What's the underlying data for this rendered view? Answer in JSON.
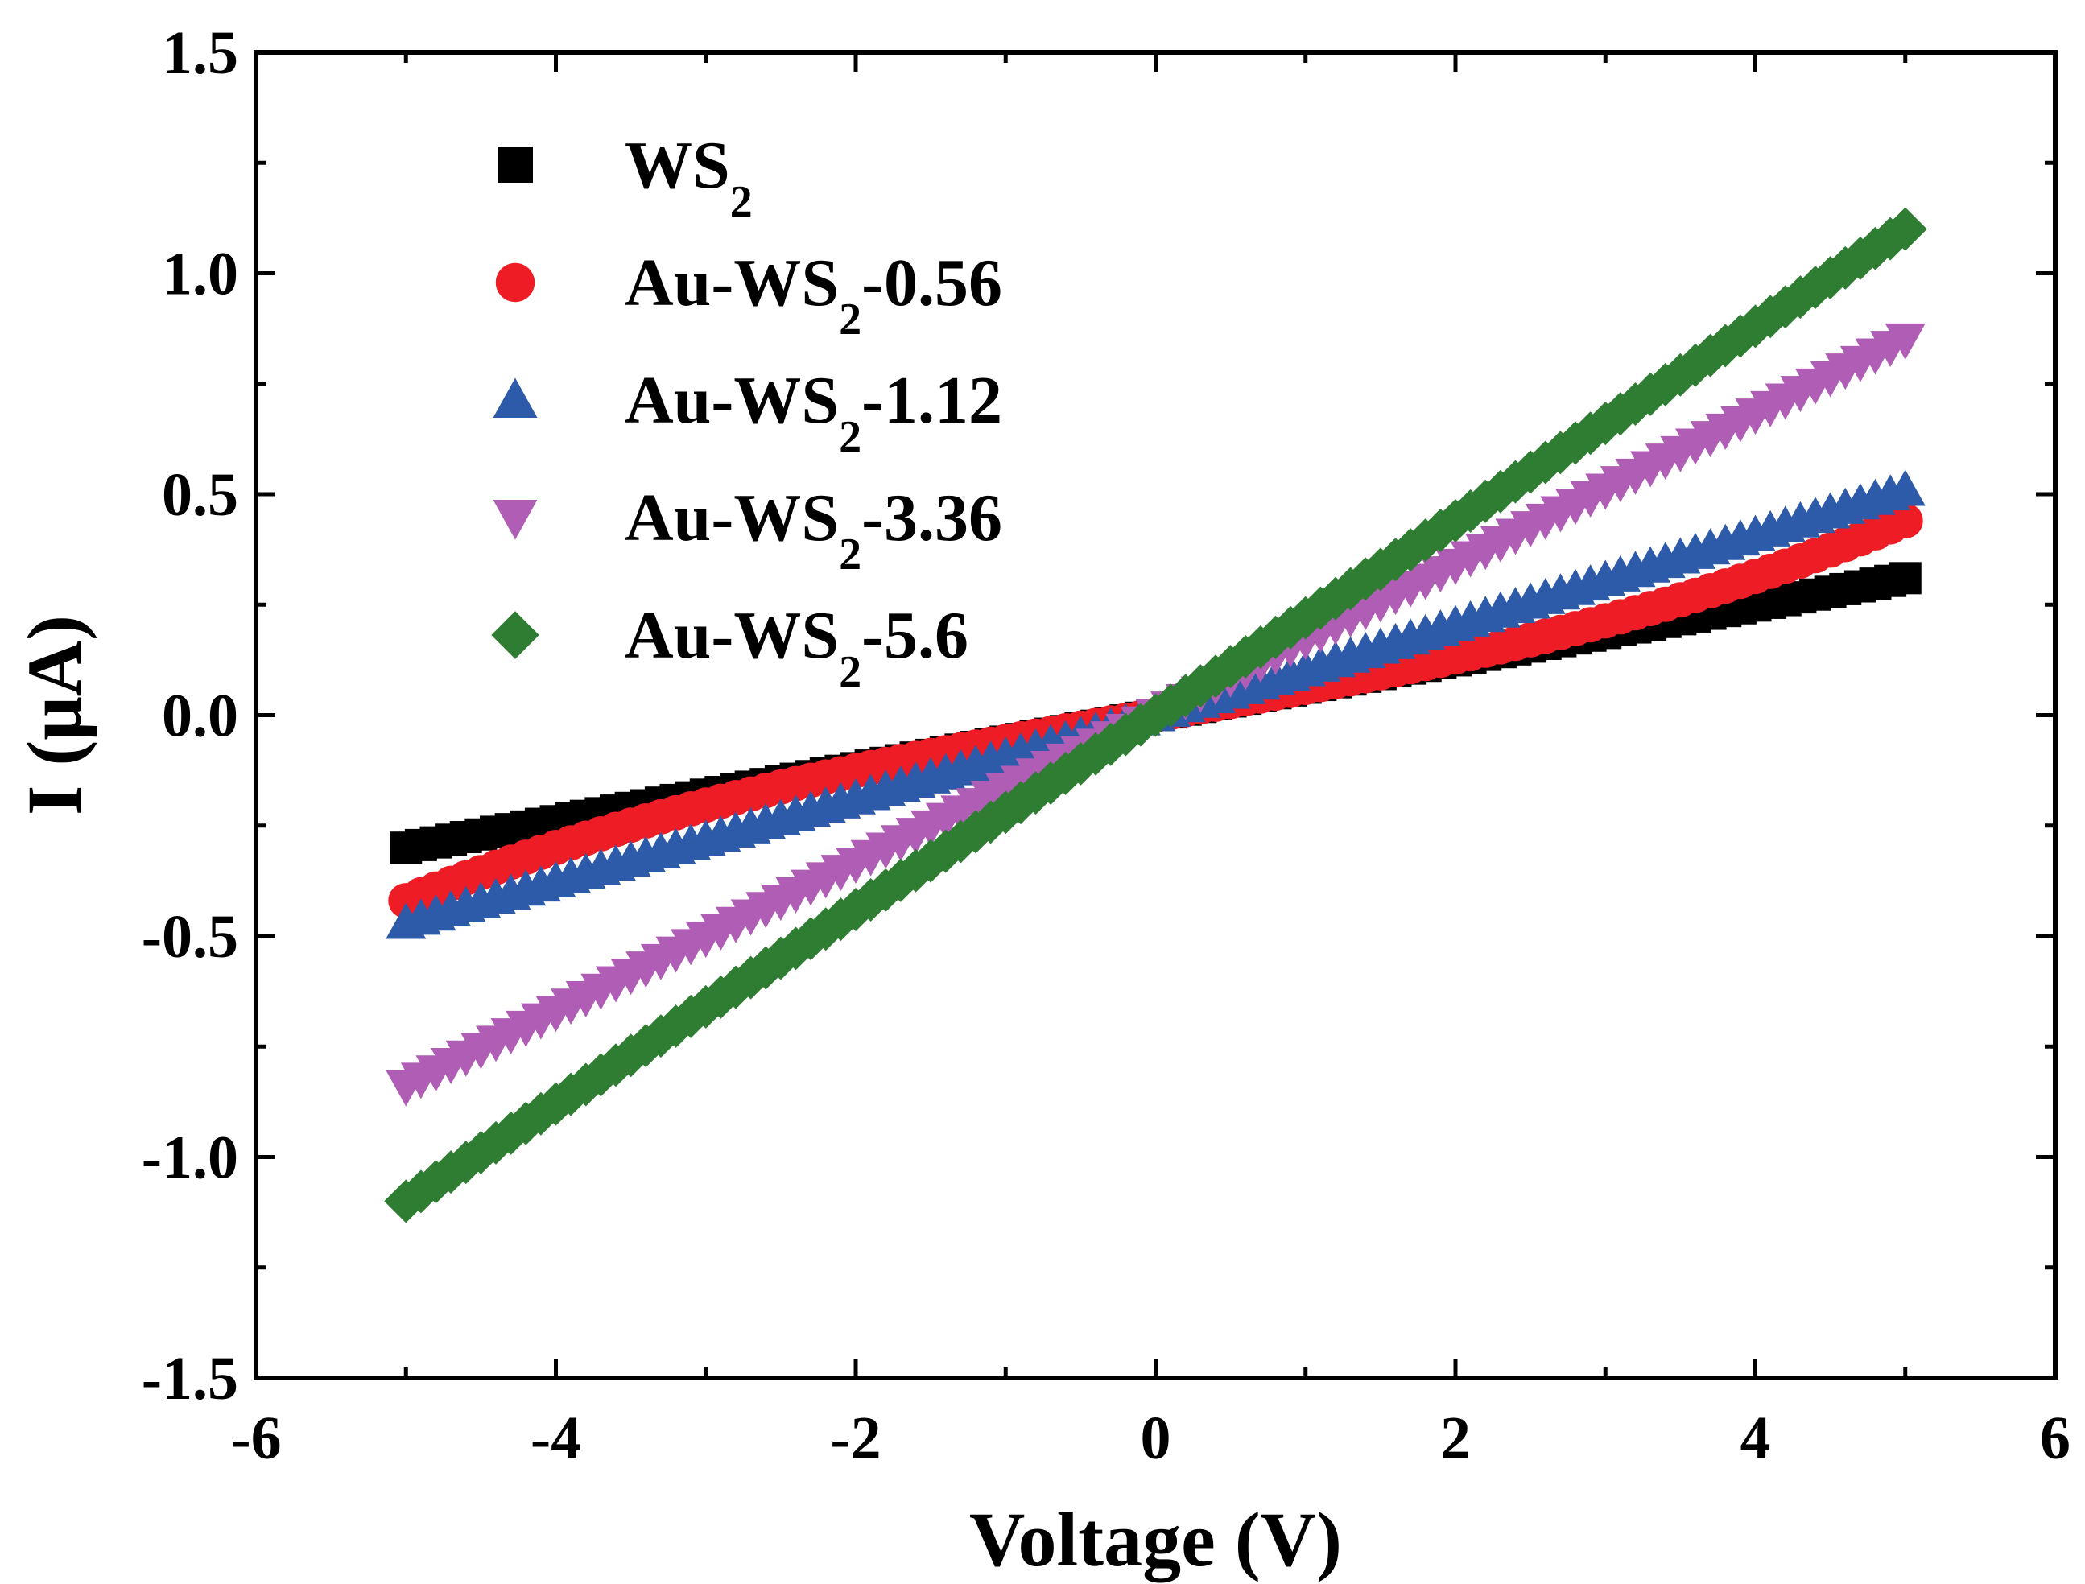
{
  "chart_data": {
    "type": "scatter",
    "title": "",
    "xlabel": "Voltage (V)",
    "ylabel": "I (μA)",
    "xlim": [
      -6,
      6
    ],
    "ylim": [
      -1.5,
      1.5
    ],
    "x_ticks": [
      "-6",
      "-4",
      "-2",
      "0",
      "2",
      "4",
      "6"
    ],
    "y_ticks": [
      "-1.5",
      "-1.0",
      "-0.5",
      "0.0",
      "0.5",
      "1.0",
      "1.5"
    ],
    "grid": false,
    "legend_position": "top-left",
    "x_range": [
      -5,
      5
    ],
    "points_per_series": 101,
    "series": [
      {
        "name": "WS2",
        "label_main": "WS",
        "label_sub": "2",
        "label_tail": "",
        "marker": "square",
        "color": "#000000",
        "i_at_minus5V": -0.3,
        "i_at_plus5V": 0.31,
        "shape": "linear"
      },
      {
        "name": "Au-WS2-0.56",
        "label_main": "Au-WS",
        "label_sub": "2",
        "label_tail": "-0.56",
        "marker": "circle",
        "color": "#ee1c25",
        "i_at_minus5V": -0.42,
        "i_at_plus5V": 0.44,
        "shape": "slightly-nonlinear"
      },
      {
        "name": "Au-WS2-1.12",
        "label_main": "Au-WS",
        "label_sub": "2",
        "label_tail": "-1.12",
        "marker": "triangle-up",
        "color": "#2e5aaa",
        "i_at_minus5V": -0.47,
        "i_at_plus5V": 0.51,
        "shape": "linear"
      },
      {
        "name": "Au-WS2-3.36",
        "label_main": "Au-WS",
        "label_sub": "2",
        "label_tail": "-3.36",
        "marker": "triangle-down",
        "color": "#b05db5",
        "i_at_minus5V": -0.84,
        "i_at_plus5V": 0.85,
        "shape": "linear"
      },
      {
        "name": "Au-WS2-5.6",
        "label_main": "Au-WS",
        "label_sub": "2",
        "label_tail": "-5.6",
        "marker": "diamond",
        "color": "#2e7d32",
        "i_at_minus5V": -1.1,
        "i_at_plus5V": 1.1,
        "shape": "linear"
      }
    ]
  }
}
